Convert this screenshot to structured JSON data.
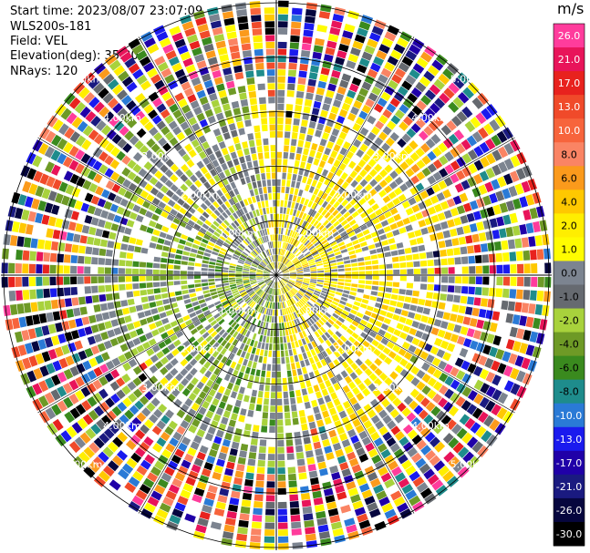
{
  "info": {
    "start_time": "Start time: 2023/08/07 23:07:09",
    "device": "WLS200s-181",
    "field": "Field: VEL",
    "elevation": "Elevation(deg): 35.30",
    "nrays": "NRays: 120"
  },
  "colorbar": {
    "unit": "m/s",
    "bins": [
      {
        "label": "26.0",
        "color": "#ff3c9c"
      },
      {
        "label": "21.0",
        "color": "#e8145a"
      },
      {
        "label": "17.0",
        "color": "#e8221e"
      },
      {
        "label": "13.0",
        "color": "#f04a2a"
      },
      {
        "label": "10.0",
        "color": "#f7643c"
      },
      {
        "label": "8.0",
        "color": "#fa8464"
      },
      {
        "label": "6.0",
        "color": "#fb9a1c"
      },
      {
        "label": "4.0",
        "color": "#ffc800"
      },
      {
        "label": "2.0",
        "color": "#ffee00"
      },
      {
        "label": "1.0",
        "color": "#fffc00"
      },
      {
        "label": "0.0",
        "color": "#7c8490"
      },
      {
        "label": "-1.0",
        "color": "#666a70"
      },
      {
        "label": "-2.0",
        "color": "#a8d23c"
      },
      {
        "label": "-4.0",
        "color": "#6e9a26"
      },
      {
        "label": "-6.0",
        "color": "#3a8a1e"
      },
      {
        "label": "-8.0",
        "color": "#1e8c8c"
      },
      {
        "label": "-10.0",
        "color": "#2a7ad6"
      },
      {
        "label": "-13.0",
        "color": "#1a1aee"
      },
      {
        "label": "-17.0",
        "color": "#2000a8"
      },
      {
        "label": "-21.0",
        "color": "#1a1a80"
      },
      {
        "label": "-26.0",
        "color": "#06063e"
      },
      {
        "label": "-30.0",
        "color": "#000000"
      }
    ]
  },
  "chart_data": {
    "type": "heatmap",
    "projection": "polar (PPI)",
    "field": "VEL",
    "units": "m/s",
    "rays": 120,
    "range_rings_km": [
      1.0,
      2.0,
      3.0,
      4.0,
      5.0
    ],
    "ring_labels": [
      "1.00km",
      "2.00km",
      "3.00km",
      "4.00km",
      "5.00km"
    ],
    "color_levels": [
      26.0,
      21.0,
      17.0,
      13.0,
      10.0,
      8.0,
      6.0,
      4.0,
      2.0,
      1.0,
      0.0,
      -1.0,
      -2.0,
      -4.0,
      -6.0,
      -8.0,
      -10.0,
      -13.0,
      -17.0,
      -21.0,
      -26.0,
      -30.0
    ],
    "near_range_pattern": "mostly gray/yellow (near 0 to +2 m/s) on east/north side, green (-1 to -4 m/s) on south-west side",
    "far_range_pattern": "noisy multicolor values spanning full scale beyond ~3 km"
  }
}
